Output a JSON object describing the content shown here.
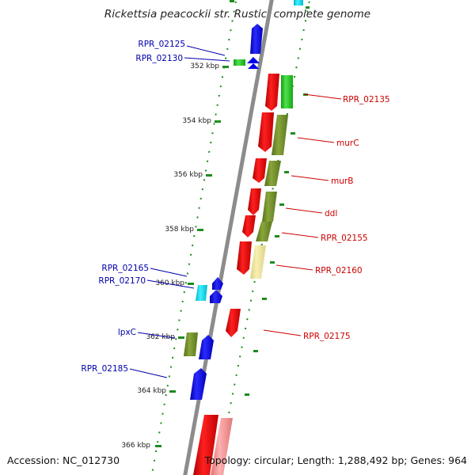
{
  "title": "Rickettsia peacockii str. Rustic, complete genome",
  "footer": {
    "accession": "Accession: NC_012730",
    "stats": "Topology: circular; Length: 1,288,492 bp; Genes: 964"
  },
  "colors": {
    "backbone": "#8c8c8c",
    "tick": "#1e8c1e",
    "forward_cds": "#ee0000",
    "reverse_cds": "#0000ee",
    "label_right": "#cc0000",
    "label_left": "#0000aa"
  },
  "scale": {
    "labels": [
      "352 kbp",
      "354 kbp",
      "356 kbp",
      "358 kbp",
      "360 kbp",
      "362 kbp",
      "364 kbp",
      "366 kbp"
    ]
  },
  "features": [
    {
      "label": "RPR_02125",
      "strand": "reverse",
      "color": "#0000ee"
    },
    {
      "label": "RPR_02130",
      "strand": "reverse",
      "color": "#0000ee"
    },
    {
      "label": "RPR_02135",
      "strand": "forward",
      "color": "#ee0000"
    },
    {
      "label": "murC",
      "strand": "forward",
      "color": "#ee0000"
    },
    {
      "label": "murB",
      "strand": "forward",
      "color": "#ee0000"
    },
    {
      "label": "ddl",
      "strand": "forward",
      "color": "#ee0000"
    },
    {
      "label": "RPR_02155",
      "strand": "forward",
      "color": "#ee0000"
    },
    {
      "label": "RPR_02160",
      "strand": "forward",
      "color": "#ee0000"
    },
    {
      "label": "RPR_02165",
      "strand": "reverse",
      "color": "#0000ee"
    },
    {
      "label": "RPR_02170",
      "strand": "reverse",
      "color": "#0000ee"
    },
    {
      "label": "RPR_02175",
      "strand": "forward",
      "color": "#ee0000"
    },
    {
      "label": "lpxC",
      "strand": "reverse",
      "color": "#0000ee"
    },
    {
      "label": "RPR_02185",
      "strand": "reverse",
      "color": "#0000ee"
    }
  ]
}
